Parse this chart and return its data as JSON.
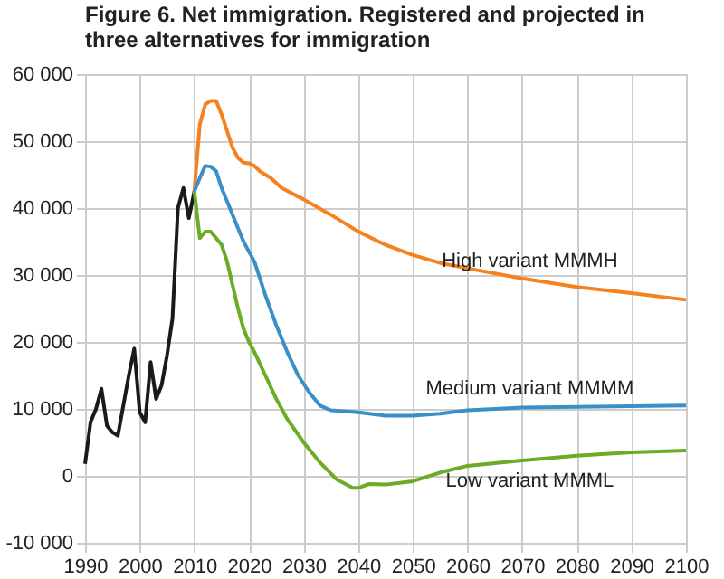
{
  "chart_data": {
    "type": "line",
    "title": "Figure 6. Net immigration. Registered and projected in three alternatives for immigration",
    "xlim": [
      1990,
      2100
    ],
    "xticks": [
      1990,
      2000,
      2010,
      2020,
      2030,
      2040,
      2050,
      2060,
      2070,
      2080,
      2090,
      2100
    ],
    "ylim": [
      -10000,
      60000
    ],
    "yticks": [
      {
        "value": -10000,
        "label": "-10 000"
      },
      {
        "value": 0,
        "label": "0"
      },
      {
        "value": 10000,
        "label": "10 000"
      },
      {
        "value": 20000,
        "label": "20 000"
      },
      {
        "value": 30000,
        "label": "30 000"
      },
      {
        "value": 40000,
        "label": "40 000"
      },
      {
        "value": 50000,
        "label": "50 000"
      },
      {
        "value": 60000,
        "label": "60 000"
      }
    ],
    "grid": true,
    "legend": false,
    "line_style": "solid",
    "marker": "none",
    "series": [
      {
        "color": "#1a1a1a",
        "x": [
          1990,
          1991,
          1992,
          1993,
          1994,
          1995,
          1996,
          1997,
          1998,
          1999,
          2000,
          2001,
          2002,
          2003,
          2004,
          2005,
          2006,
          2007,
          2008,
          2009,
          2010
        ],
        "values": [
          1800,
          8000,
          10000,
          13000,
          7500,
          6500,
          6000,
          10500,
          15000,
          19000,
          9500,
          8000,
          17000,
          11500,
          13500,
          18000,
          23500,
          40000,
          43000,
          38500,
          42500
        ]
      },
      {
        "name": "High variant MMMH",
        "color": "#f58220",
        "x": [
          2010,
          2011,
          2012,
          2013,
          2014,
          2015,
          2016,
          2017,
          2018,
          2019,
          2020,
          2021,
          2022,
          2024,
          2026,
          2030,
          2035,
          2040,
          2045,
          2050,
          2055,
          2060,
          2070,
          2080,
          2090,
          2100
        ],
        "values": [
          42500,
          52500,
          55500,
          56000,
          56000,
          54000,
          51500,
          49000,
          47500,
          46800,
          46700,
          46300,
          45500,
          44500,
          43000,
          41300,
          39000,
          36500,
          34500,
          33000,
          31800,
          31000,
          29500,
          28200,
          27300,
          26300
        ]
      },
      {
        "name": "Medium variant  MMMM",
        "color": "#3a8fc9",
        "x": [
          2010,
          2011,
          2012,
          2013,
          2014,
          2015,
          2016,
          2017,
          2018,
          2019,
          2020,
          2021,
          2022,
          2023,
          2025,
          2027,
          2029,
          2031,
          2033,
          2035,
          2040,
          2045,
          2050,
          2055,
          2060,
          2070,
          2080,
          2090,
          2100
        ],
        "values": [
          42500,
          44500,
          46300,
          46200,
          45500,
          43000,
          41000,
          39000,
          37000,
          35000,
          33500,
          32000,
          29500,
          27000,
          22500,
          18500,
          15000,
          12500,
          10500,
          9800,
          9500,
          9000,
          9000,
          9300,
          9800,
          10200,
          10300,
          10400,
          10500
        ]
      },
      {
        "name": "Low variant  MMML",
        "color": "#6bab26",
        "x": [
          2010,
          2011,
          2012,
          2013,
          2014,
          2015,
          2016,
          2017,
          2018,
          2019,
          2020,
          2021,
          2023,
          2025,
          2027,
          2030,
          2033,
          2036,
          2039,
          2040,
          2042,
          2045,
          2050,
          2055,
          2060,
          2070,
          2080,
          2090,
          2100
        ],
        "values": [
          42500,
          35500,
          36500,
          36500,
          35500,
          34500,
          32000,
          28500,
          25000,
          22000,
          20000,
          18500,
          15000,
          11500,
          8500,
          5000,
          2000,
          -500,
          -1800,
          -1800,
          -1200,
          -1300,
          -800,
          500,
          1500,
          2300,
          3000,
          3500,
          3800
        ]
      }
    ]
  }
}
